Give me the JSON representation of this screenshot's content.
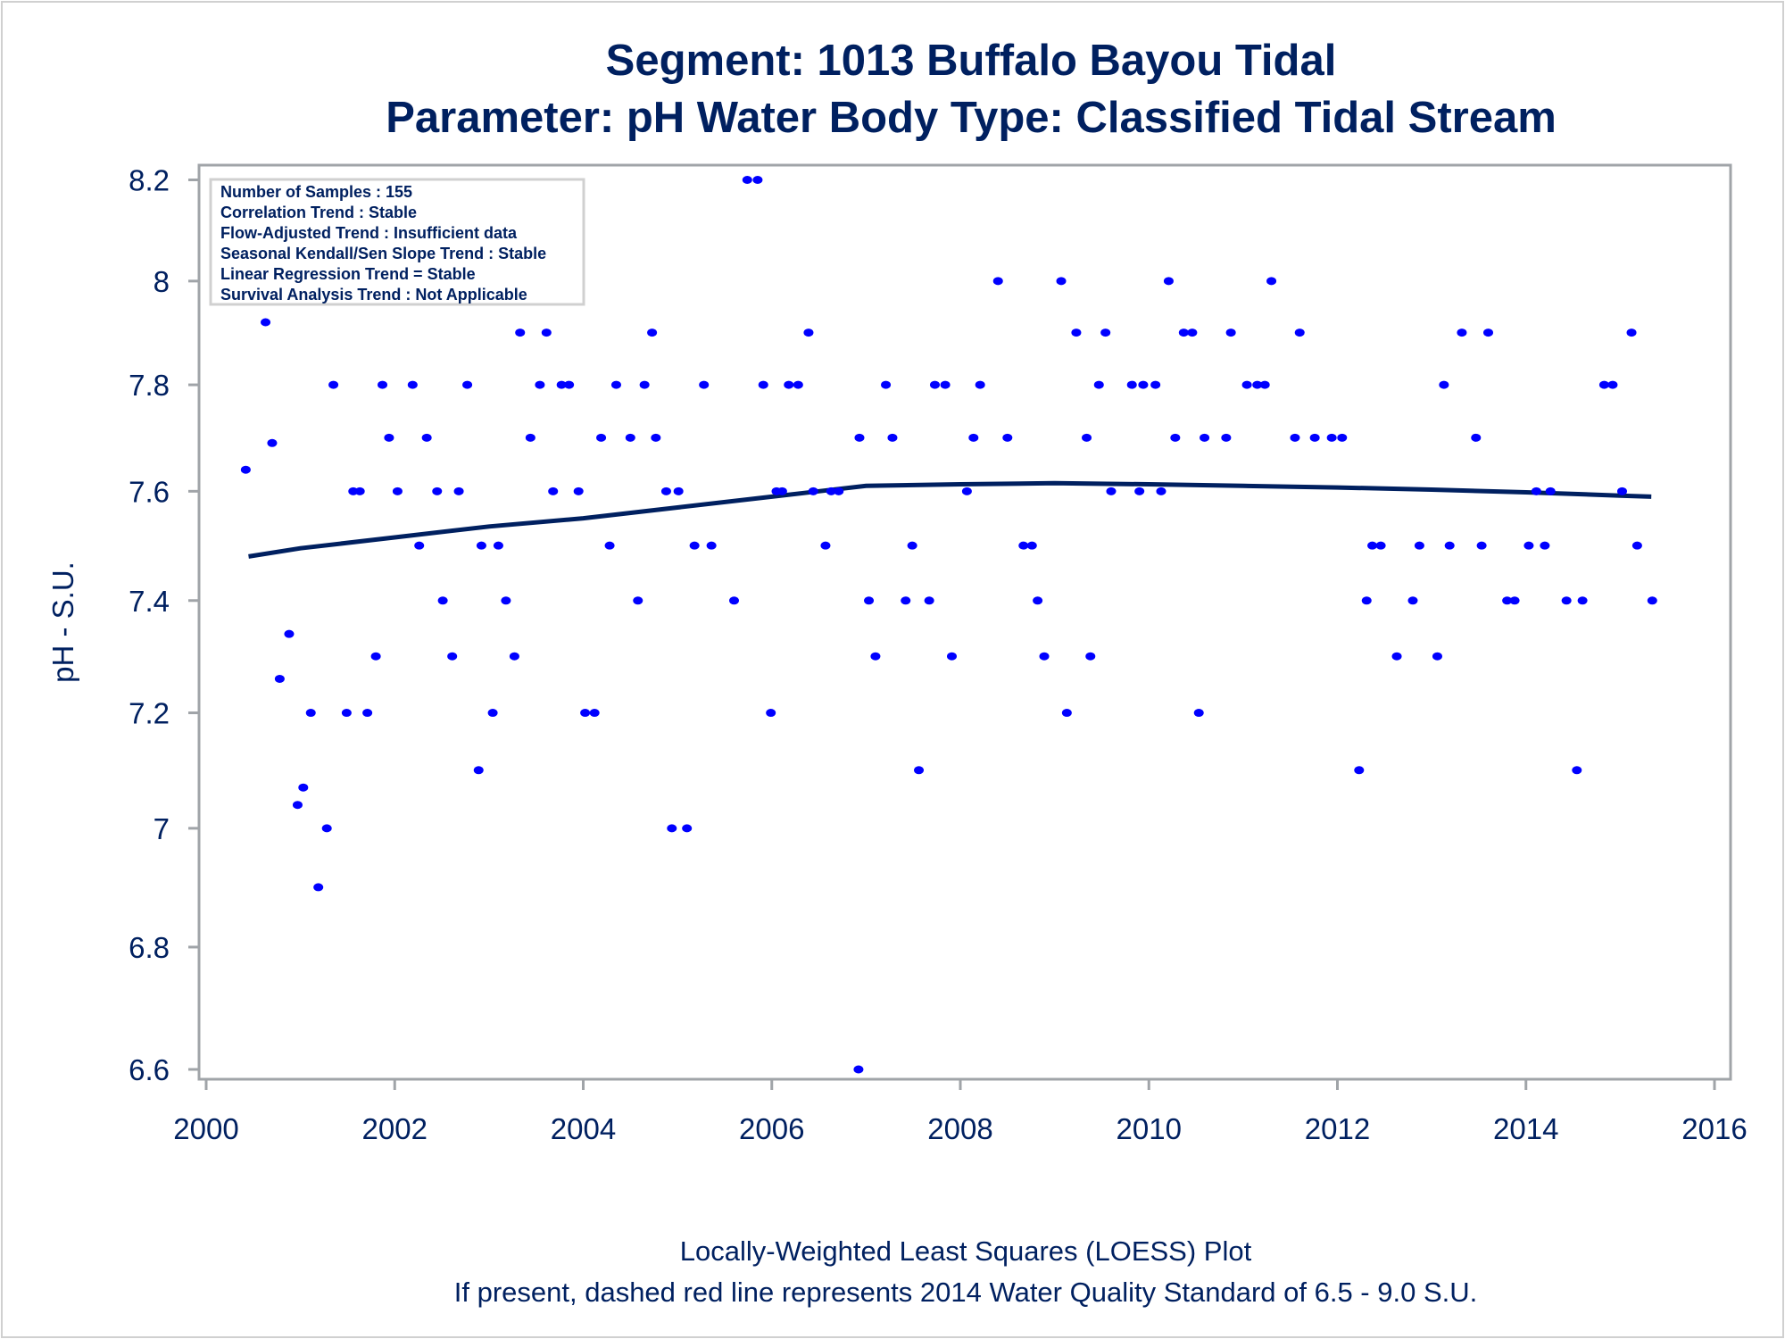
{
  "chart_data": {
    "type": "scatter",
    "title": "Segment: 1013  Buffalo Bayou Tidal",
    "subtitle": "Parameter: pH   Water Body Type: Classified Tidal Stream",
    "xlabel": "",
    "ylabel": "pH - S.U.",
    "xlim": [
      2000,
      2016
    ],
    "ylim": [
      6.6,
      8.2
    ],
    "yscale": "log",
    "x_ticks": [
      "2000",
      "2002",
      "2004",
      "2006",
      "2008",
      "2010",
      "2012",
      "2014",
      "2016"
    ],
    "y_ticks": [
      "6.6",
      "6.8",
      "7",
      "7.2",
      "7.4",
      "7.6",
      "7.8",
      "8",
      "8.2"
    ],
    "grid": false,
    "colors": {
      "points": "#0000ff",
      "loess": "#002060",
      "text": "#002060",
      "axis": "#a0a4a8"
    },
    "legend_box": [
      "Number of Samples : 155",
      "Correlation Trend : Stable",
      "Flow-Adjusted Trend : Insufficient data",
      "Seasonal Kendall/Sen Slope Trend : Stable",
      "Linear Regression Trend = Stable",
      "Survival Analysis Trend : Not Applicable"
    ],
    "footnotes": [
      "Locally-Weighted Least Squares (LOESS) Plot",
      "If present, dashed red line represents 2014 Water Quality Standard of 6.5 - 9.0 S.U."
    ],
    "points": [
      [
        2000.42,
        7.64
      ],
      [
        2000.54,
        8.0
      ],
      [
        2000.63,
        7.92
      ],
      [
        2000.7,
        7.69
      ],
      [
        2000.78,
        7.26
      ],
      [
        2000.88,
        7.34
      ],
      [
        2000.97,
        7.04
      ],
      [
        2001.03,
        7.07
      ],
      [
        2001.11,
        7.2
      ],
      [
        2001.19,
        6.9
      ],
      [
        2001.28,
        7.0
      ],
      [
        2001.35,
        7.8
      ],
      [
        2001.49,
        7.2
      ],
      [
        2001.56,
        7.6
      ],
      [
        2001.63,
        7.6
      ],
      [
        2001.71,
        7.2
      ],
      [
        2001.8,
        7.3
      ],
      [
        2001.87,
        7.8
      ],
      [
        2001.94,
        7.7
      ],
      [
        2002.03,
        7.6
      ],
      [
        2002.1,
        8.1
      ],
      [
        2002.19,
        7.8
      ],
      [
        2002.26,
        7.5
      ],
      [
        2002.34,
        7.7
      ],
      [
        2002.45,
        7.6
      ],
      [
        2002.51,
        7.4
      ],
      [
        2002.61,
        7.3
      ],
      [
        2002.68,
        7.6
      ],
      [
        2002.77,
        7.8
      ],
      [
        2002.89,
        7.1
      ],
      [
        2002.92,
        7.5
      ],
      [
        2003.04,
        7.2
      ],
      [
        2003.1,
        7.5
      ],
      [
        2003.18,
        7.4
      ],
      [
        2003.27,
        7.3
      ],
      [
        2003.33,
        7.9
      ],
      [
        2003.44,
        7.7
      ],
      [
        2003.54,
        7.8
      ],
      [
        2003.61,
        7.9
      ],
      [
        2003.68,
        7.6
      ],
      [
        2003.77,
        7.8
      ],
      [
        2003.85,
        7.8
      ],
      [
        2003.95,
        7.6
      ],
      [
        2004.02,
        7.2
      ],
      [
        2004.12,
        7.2
      ],
      [
        2004.19,
        7.7
      ],
      [
        2004.28,
        7.5
      ],
      [
        2004.35,
        7.8
      ],
      [
        2004.5,
        7.7
      ],
      [
        2004.58,
        7.4
      ],
      [
        2004.65,
        7.8
      ],
      [
        2004.73,
        7.9
      ],
      [
        2004.77,
        7.7
      ],
      [
        2004.88,
        7.6
      ],
      [
        2004.94,
        7.0
      ],
      [
        2005.01,
        7.6
      ],
      [
        2005.1,
        7.0
      ],
      [
        2005.18,
        7.5
      ],
      [
        2005.28,
        7.8
      ],
      [
        2005.36,
        7.5
      ],
      [
        2005.6,
        7.4
      ],
      [
        2005.74,
        8.2
      ],
      [
        2005.85,
        8.2
      ],
      [
        2005.91,
        7.8
      ],
      [
        2005.99,
        7.2
      ],
      [
        2006.05,
        7.6
      ],
      [
        2006.11,
        7.6
      ],
      [
        2006.18,
        7.8
      ],
      [
        2006.28,
        7.8
      ],
      [
        2006.39,
        7.9
      ],
      [
        2006.44,
        7.6
      ],
      [
        2006.57,
        7.5
      ],
      [
        2006.63,
        7.6
      ],
      [
        2006.71,
        7.6
      ],
      [
        2006.92,
        6.6
      ],
      [
        2006.93,
        7.7
      ],
      [
        2007.03,
        7.4
      ],
      [
        2007.1,
        7.3
      ],
      [
        2007.21,
        7.8
      ],
      [
        2007.28,
        7.7
      ],
      [
        2007.42,
        7.4
      ],
      [
        2007.49,
        7.5
      ],
      [
        2007.56,
        7.1
      ],
      [
        2007.67,
        7.4
      ],
      [
        2007.73,
        7.8
      ],
      [
        2007.84,
        7.8
      ],
      [
        2007.91,
        7.3
      ],
      [
        2008.07,
        7.6
      ],
      [
        2008.14,
        7.7
      ],
      [
        2008.21,
        7.8
      ],
      [
        2008.4,
        8.0
      ],
      [
        2008.5,
        7.7
      ],
      [
        2008.67,
        7.5
      ],
      [
        2008.76,
        7.5
      ],
      [
        2008.82,
        7.4
      ],
      [
        2008.89,
        7.3
      ],
      [
        2009.07,
        8.0
      ],
      [
        2009.13,
        7.2
      ],
      [
        2009.23,
        7.9
      ],
      [
        2009.34,
        7.7
      ],
      [
        2009.38,
        7.3
      ],
      [
        2009.47,
        7.8
      ],
      [
        2009.54,
        7.9
      ],
      [
        2009.6,
        7.6
      ],
      [
        2009.82,
        7.8
      ],
      [
        2009.9,
        7.6
      ],
      [
        2009.94,
        7.8
      ],
      [
        2010.07,
        7.8
      ],
      [
        2010.13,
        7.6
      ],
      [
        2010.21,
        8.0
      ],
      [
        2010.28,
        7.7
      ],
      [
        2010.37,
        7.9
      ],
      [
        2010.46,
        7.9
      ],
      [
        2010.53,
        7.2
      ],
      [
        2010.59,
        7.7
      ],
      [
        2010.82,
        7.7
      ],
      [
        2010.87,
        7.9
      ],
      [
        2011.04,
        7.8
      ],
      [
        2011.15,
        7.8
      ],
      [
        2011.23,
        7.8
      ],
      [
        2011.3,
        8.0
      ],
      [
        2011.55,
        7.7
      ],
      [
        2011.6,
        7.9
      ],
      [
        2011.76,
        7.7
      ],
      [
        2011.94,
        7.7
      ],
      [
        2012.05,
        7.7
      ],
      [
        2012.23,
        7.1
      ],
      [
        2012.31,
        7.4
      ],
      [
        2012.37,
        7.5
      ],
      [
        2012.46,
        7.5
      ],
      [
        2012.63,
        7.3
      ],
      [
        2012.8,
        7.4
      ],
      [
        2012.87,
        7.5
      ],
      [
        2013.06,
        7.3
      ],
      [
        2013.13,
        7.8
      ],
      [
        2013.19,
        7.5
      ],
      [
        2013.32,
        7.9
      ],
      [
        2013.47,
        7.7
      ],
      [
        2013.53,
        7.5
      ],
      [
        2013.6,
        7.9
      ],
      [
        2013.8,
        7.4
      ],
      [
        2013.88,
        7.4
      ],
      [
        2014.03,
        7.5
      ],
      [
        2014.11,
        7.6
      ],
      [
        2014.2,
        7.5
      ],
      [
        2014.26,
        7.6
      ],
      [
        2014.43,
        7.4
      ],
      [
        2014.54,
        7.1
      ],
      [
        2014.6,
        7.4
      ],
      [
        2014.83,
        7.8
      ],
      [
        2014.92,
        7.8
      ],
      [
        2015.02,
        7.6
      ],
      [
        2015.12,
        7.9
      ],
      [
        2015.18,
        7.5
      ],
      [
        2015.34,
        7.4
      ]
    ],
    "loess": [
      [
        2000.45,
        7.48
      ],
      [
        2001,
        7.495
      ],
      [
        2002,
        7.515
      ],
      [
        2003,
        7.535
      ],
      [
        2004,
        7.55
      ],
      [
        2005,
        7.57
      ],
      [
        2006,
        7.59
      ],
      [
        2006.5,
        7.6
      ],
      [
        2007,
        7.61
      ],
      [
        2008,
        7.613
      ],
      [
        2009,
        7.615
      ],
      [
        2010,
        7.613
      ],
      [
        2011,
        7.61
      ],
      [
        2012,
        7.607
      ],
      [
        2013,
        7.603
      ],
      [
        2014,
        7.598
      ],
      [
        2015,
        7.592
      ],
      [
        2015.33,
        7.59
      ]
    ]
  }
}
